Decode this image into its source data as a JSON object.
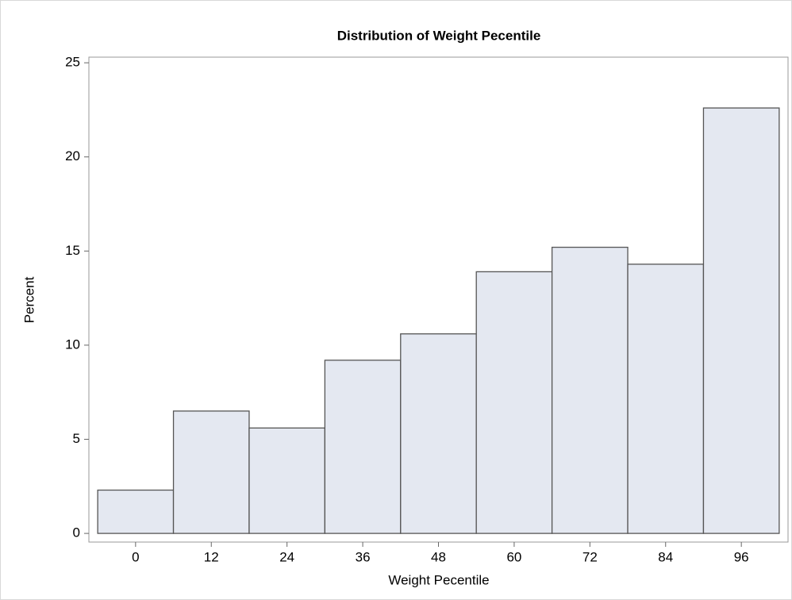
{
  "chart_data": {
    "type": "histogram",
    "title": "Distribution of Weight Pecentile",
    "x_label": "Weight Pecentile",
    "y_label": "Percent",
    "bins": [
      -6,
      6,
      18,
      30,
      42,
      54,
      66,
      78,
      90,
      102
    ],
    "values": [
      2.3,
      6.5,
      5.6,
      9.2,
      10.6,
      13.9,
      15.2,
      14.3,
      22.6
    ],
    "color": "#e4e8f1",
    "edge_color": "#555555",
    "xlim": [
      -7.4,
      103.4
    ],
    "xticks": [
      0,
      12,
      24,
      36,
      48,
      60,
      72,
      84,
      96
    ],
    "ylim": [
      -0.46,
      25.3
    ],
    "yticks": [
      0,
      5,
      10,
      15,
      20,
      25
    ]
  }
}
